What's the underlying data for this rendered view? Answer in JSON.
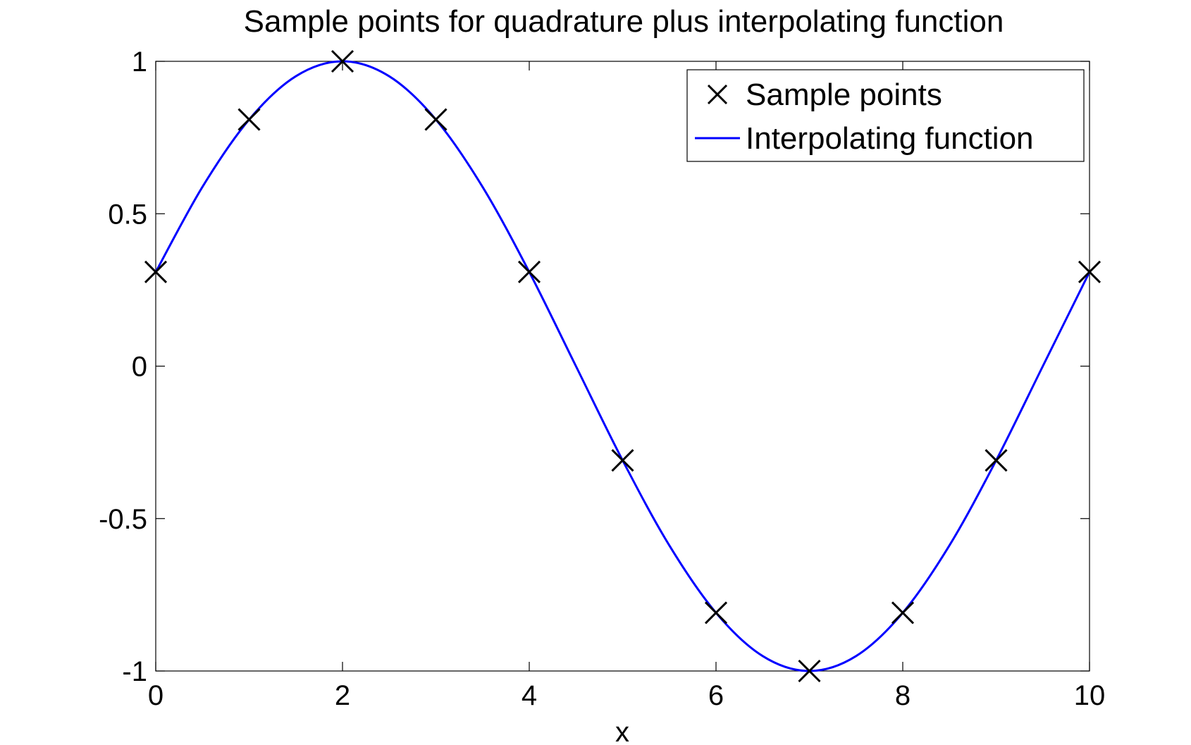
{
  "chart_data": {
    "type": "line",
    "title": "Sample points for quadrature plus interpolating function",
    "xlabel": "x",
    "ylabel": "",
    "xlim": [
      0,
      10
    ],
    "ylim": [
      -1,
      1
    ],
    "x_ticks": [
      0,
      2,
      4,
      6,
      8,
      10
    ],
    "y_ticks": [
      -1,
      -0.5,
      0,
      0.5,
      1
    ],
    "x_tick_labels": [
      "0",
      "2",
      "4",
      "6",
      "8",
      "10"
    ],
    "y_tick_labels": [
      "-1",
      "-0.5",
      "0",
      "0.5",
      "1"
    ],
    "grid": false,
    "legend_position": "top-right",
    "series": [
      {
        "name": "Sample points",
        "kind": "markers",
        "marker": "x",
        "color": "#000000",
        "x": [
          0,
          1,
          2,
          3,
          4,
          5,
          6,
          7,
          8,
          9,
          10
        ],
        "y": [
          0.309,
          0.809,
          1.0,
          0.809,
          0.309,
          -0.309,
          -0.809,
          -1.0,
          -0.809,
          -0.309,
          0.309
        ]
      },
      {
        "name": "Interpolating function",
        "kind": "line",
        "color": "#0000ff",
        "x": [
          0,
          0.5,
          1,
          1.5,
          2,
          2.5,
          3,
          3.5,
          4,
          4.5,
          5,
          5.5,
          6,
          6.5,
          7,
          7.5,
          8,
          8.5,
          9,
          9.5,
          10
        ],
        "y": [
          0.309,
          0.588,
          0.809,
          0.951,
          1.0,
          0.951,
          0.809,
          0.588,
          0.309,
          0.0,
          -0.309,
          -0.588,
          -0.809,
          -0.951,
          -1.0,
          -0.951,
          -0.809,
          -0.588,
          -0.309,
          0.0,
          0.309
        ]
      }
    ]
  }
}
